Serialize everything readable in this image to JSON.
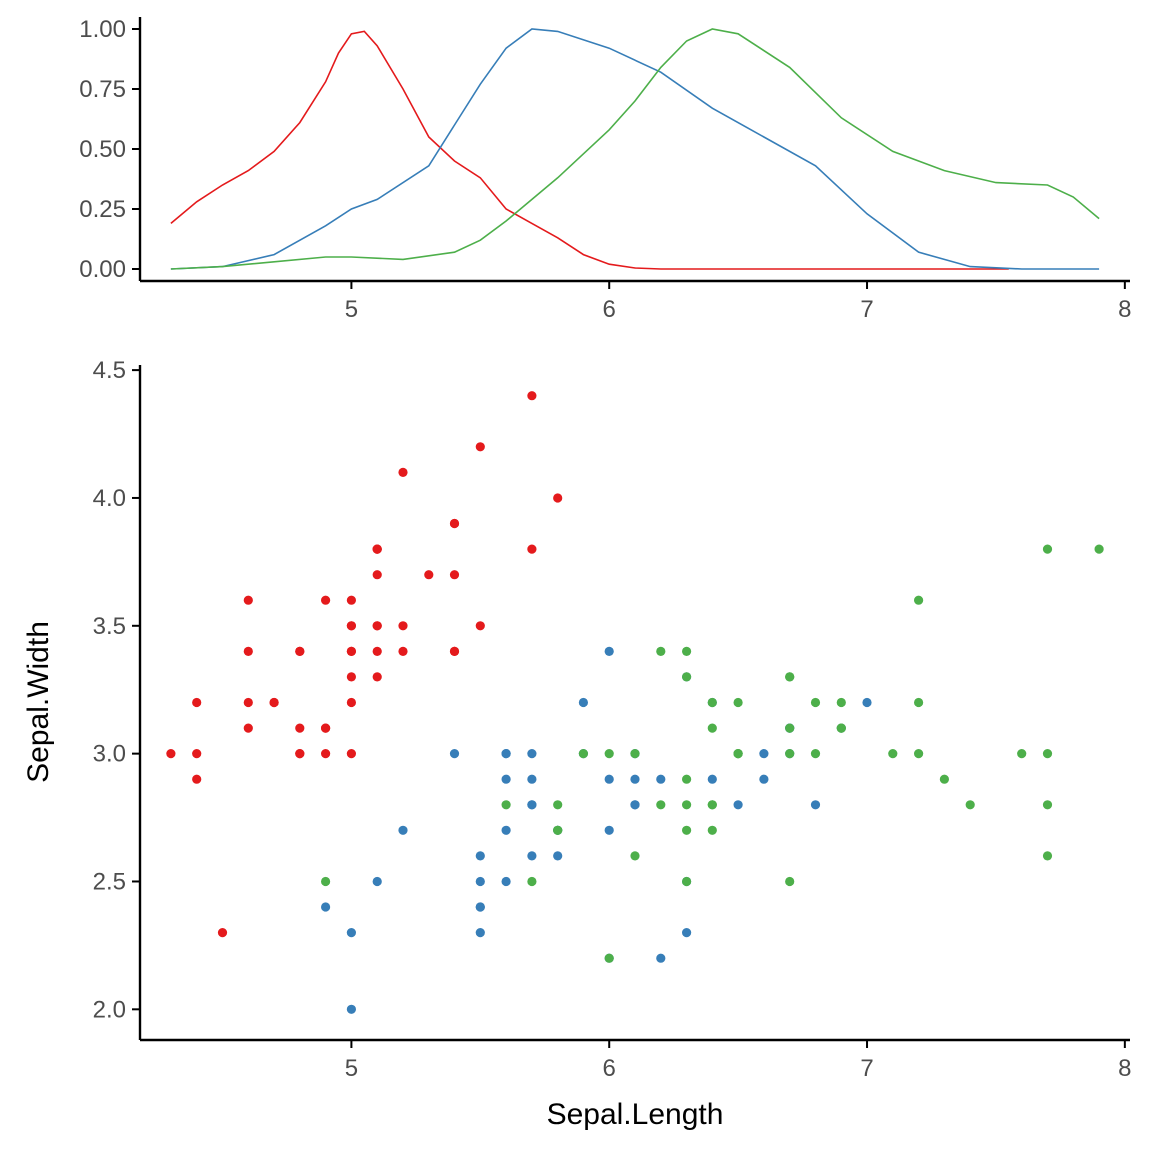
{
  "chart_data": [
    {
      "type": "line",
      "panel": "marginal-density",
      "xlim": [
        4.18,
        8.02
      ],
      "ylim": [
        -0.05,
        1.05
      ],
      "x_ticks": [
        "5",
        "6",
        "7",
        "8"
      ],
      "x_tick_values": [
        5,
        6,
        7,
        8
      ],
      "y_ticks": [
        "0.00",
        "0.25",
        "0.50",
        "0.75",
        "1.00"
      ],
      "y_tick_values": [
        0,
        0.25,
        0.5,
        0.75,
        1.0
      ],
      "grid": false,
      "legend": "none",
      "series": [
        {
          "color": "#e41a1c",
          "points": [
            [
              4.3,
              0.19
            ],
            [
              4.4,
              0.28
            ],
            [
              4.5,
              0.35
            ],
            [
              4.6,
              0.41
            ],
            [
              4.7,
              0.49
            ],
            [
              4.8,
              0.61
            ],
            [
              4.9,
              0.78
            ],
            [
              4.95,
              0.9
            ],
            [
              5.0,
              0.98
            ],
            [
              5.05,
              0.99
            ],
            [
              5.1,
              0.93
            ],
            [
              5.2,
              0.75
            ],
            [
              5.3,
              0.55
            ],
            [
              5.4,
              0.45
            ],
            [
              5.5,
              0.38
            ],
            [
              5.6,
              0.25
            ],
            [
              5.7,
              0.19
            ],
            [
              5.8,
              0.13
            ],
            [
              5.9,
              0.06
            ],
            [
              6.0,
              0.02
            ],
            [
              6.1,
              0.004
            ],
            [
              6.2,
              0.0
            ],
            [
              7.0,
              0.0
            ],
            [
              7.55,
              0.0
            ]
          ]
        },
        {
          "color": "#377eb8",
          "points": [
            [
              4.3,
              0.0
            ],
            [
              4.5,
              0.01
            ],
            [
              4.7,
              0.06
            ],
            [
              4.9,
              0.18
            ],
            [
              5.0,
              0.25
            ],
            [
              5.1,
              0.29
            ],
            [
              5.3,
              0.43
            ],
            [
              5.4,
              0.6
            ],
            [
              5.5,
              0.77
            ],
            [
              5.6,
              0.92
            ],
            [
              5.7,
              1.0
            ],
            [
              5.8,
              0.99
            ],
            [
              6.0,
              0.92
            ],
            [
              6.2,
              0.82
            ],
            [
              6.4,
              0.67
            ],
            [
              6.6,
              0.55
            ],
            [
              6.8,
              0.43
            ],
            [
              7.0,
              0.23
            ],
            [
              7.2,
              0.07
            ],
            [
              7.4,
              0.01
            ],
            [
              7.6,
              0.0
            ],
            [
              7.9,
              0.0
            ]
          ]
        },
        {
          "color": "#4daf4a",
          "points": [
            [
              4.3,
              0.0
            ],
            [
              4.5,
              0.01
            ],
            [
              4.7,
              0.03
            ],
            [
              4.9,
              0.05
            ],
            [
              5.0,
              0.05
            ],
            [
              5.2,
              0.04
            ],
            [
              5.4,
              0.07
            ],
            [
              5.5,
              0.12
            ],
            [
              5.6,
              0.2
            ],
            [
              5.8,
              0.38
            ],
            [
              6.0,
              0.58
            ],
            [
              6.1,
              0.7
            ],
            [
              6.2,
              0.84
            ],
            [
              6.3,
              0.95
            ],
            [
              6.4,
              1.0
            ],
            [
              6.5,
              0.98
            ],
            [
              6.7,
              0.84
            ],
            [
              6.9,
              0.63
            ],
            [
              7.1,
              0.49
            ],
            [
              7.3,
              0.41
            ],
            [
              7.5,
              0.36
            ],
            [
              7.7,
              0.35
            ],
            [
              7.8,
              0.3
            ],
            [
              7.9,
              0.21
            ]
          ]
        }
      ]
    },
    {
      "type": "scatter",
      "panel": "main",
      "xlabel": "Sepal.Length",
      "ylabel": "Sepal.Width",
      "xlim": [
        4.18,
        8.02
      ],
      "ylim": [
        1.88,
        4.52
      ],
      "x_ticks": [
        "5",
        "6",
        "7",
        "8"
      ],
      "x_tick_values": [
        5,
        6,
        7,
        8
      ],
      "y_ticks": [
        "2.0",
        "2.5",
        "3.0",
        "3.5",
        "4.0",
        "4.5"
      ],
      "y_tick_values": [
        2.0,
        2.5,
        3.0,
        3.5,
        4.0,
        4.5
      ],
      "grid": false,
      "legend": "none",
      "series": [
        {
          "color": "#e41a1c",
          "points": [
            [
              5.1,
              3.5
            ],
            [
              4.9,
              3.0
            ],
            [
              4.7,
              3.2
            ],
            [
              4.6,
              3.1
            ],
            [
              5.0,
              3.6
            ],
            [
              5.4,
              3.9
            ],
            [
              4.6,
              3.4
            ],
            [
              5.0,
              3.4
            ],
            [
              4.4,
              2.9
            ],
            [
              4.9,
              3.1
            ],
            [
              5.4,
              3.7
            ],
            [
              4.8,
              3.4
            ],
            [
              4.8,
              3.0
            ],
            [
              4.3,
              3.0
            ],
            [
              5.8,
              4.0
            ],
            [
              5.7,
              4.4
            ],
            [
              5.4,
              3.9
            ],
            [
              5.1,
              3.5
            ],
            [
              5.7,
              3.8
            ],
            [
              5.1,
              3.8
            ],
            [
              5.4,
              3.4
            ],
            [
              5.1,
              3.7
            ],
            [
              4.6,
              3.6
            ],
            [
              5.1,
              3.3
            ],
            [
              4.8,
              3.4
            ],
            [
              5.0,
              3.0
            ],
            [
              5.0,
              3.4
            ],
            [
              5.2,
              3.5
            ],
            [
              5.2,
              3.4
            ],
            [
              4.7,
              3.2
            ],
            [
              4.8,
              3.1
            ],
            [
              5.4,
              3.4
            ],
            [
              5.2,
              4.1
            ],
            [
              5.5,
              4.2
            ],
            [
              4.9,
              3.1
            ],
            [
              5.0,
              3.2
            ],
            [
              5.5,
              3.5
            ],
            [
              4.9,
              3.6
            ],
            [
              4.4,
              3.0
            ],
            [
              5.1,
              3.4
            ],
            [
              5.0,
              3.5
            ],
            [
              4.5,
              2.3
            ],
            [
              4.4,
              3.2
            ],
            [
              5.0,
              3.5
            ],
            [
              5.1,
              3.8
            ],
            [
              4.8,
              3.0
            ],
            [
              5.1,
              3.8
            ],
            [
              4.6,
              3.2
            ],
            [
              5.3,
              3.7
            ],
            [
              5.0,
              3.3
            ]
          ]
        },
        {
          "color": "#377eb8",
          "points": [
            [
              7.0,
              3.2
            ],
            [
              6.4,
              3.2
            ],
            [
              6.9,
              3.1
            ],
            [
              5.5,
              2.3
            ],
            [
              6.5,
              2.8
            ],
            [
              5.7,
              2.8
            ],
            [
              6.3,
              3.3
            ],
            [
              4.9,
              2.4
            ],
            [
              6.6,
              2.9
            ],
            [
              5.2,
              2.7
            ],
            [
              5.0,
              2.0
            ],
            [
              5.9,
              3.0
            ],
            [
              6.0,
              2.2
            ],
            [
              6.1,
              2.9
            ],
            [
              5.6,
              2.9
            ],
            [
              6.7,
              3.1
            ],
            [
              5.6,
              3.0
            ],
            [
              5.8,
              2.7
            ],
            [
              6.2,
              2.2
            ],
            [
              5.6,
              2.5
            ],
            [
              5.9,
              3.2
            ],
            [
              6.1,
              2.8
            ],
            [
              6.3,
              2.5
            ],
            [
              6.1,
              2.8
            ],
            [
              6.4,
              2.9
            ],
            [
              6.6,
              3.0
            ],
            [
              6.8,
              2.8
            ],
            [
              6.7,
              3.0
            ],
            [
              6.0,
              2.9
            ],
            [
              5.7,
              2.6
            ],
            [
              5.5,
              2.4
            ],
            [
              5.5,
              2.4
            ],
            [
              5.8,
              2.7
            ],
            [
              6.0,
              2.7
            ],
            [
              5.4,
              3.0
            ],
            [
              6.0,
              3.4
            ],
            [
              6.7,
              3.1
            ],
            [
              6.3,
              2.3
            ],
            [
              5.6,
              3.0
            ],
            [
              5.5,
              2.5
            ],
            [
              5.5,
              2.6
            ],
            [
              6.1,
              3.0
            ],
            [
              5.8,
              2.6
            ],
            [
              5.0,
              2.3
            ],
            [
              5.6,
              2.7
            ],
            [
              5.7,
              3.0
            ],
            [
              5.7,
              2.9
            ],
            [
              6.2,
              2.9
            ],
            [
              5.1,
              2.5
            ],
            [
              5.7,
              2.8
            ]
          ]
        },
        {
          "color": "#4daf4a",
          "points": [
            [
              6.3,
              3.3
            ],
            [
              5.8,
              2.7
            ],
            [
              7.1,
              3.0
            ],
            [
              6.3,
              2.9
            ],
            [
              6.5,
              3.0
            ],
            [
              7.6,
              3.0
            ],
            [
              4.9,
              2.5
            ],
            [
              7.3,
              2.9
            ],
            [
              6.7,
              2.5
            ],
            [
              7.2,
              3.6
            ],
            [
              6.5,
              3.2
            ],
            [
              6.4,
              2.7
            ],
            [
              6.8,
              3.0
            ],
            [
              5.7,
              2.5
            ],
            [
              5.8,
              2.8
            ],
            [
              6.4,
              3.2
            ],
            [
              6.5,
              3.0
            ],
            [
              7.7,
              3.8
            ],
            [
              7.7,
              2.6
            ],
            [
              6.0,
              2.2
            ],
            [
              6.9,
              3.2
            ],
            [
              5.6,
              2.8
            ],
            [
              7.7,
              2.8
            ],
            [
              6.3,
              2.7
            ],
            [
              6.7,
              3.3
            ],
            [
              7.2,
              3.2
            ],
            [
              6.2,
              2.8
            ],
            [
              6.1,
              3.0
            ],
            [
              6.4,
              2.8
            ],
            [
              7.2,
              3.0
            ],
            [
              7.4,
              2.8
            ],
            [
              7.9,
              3.8
            ],
            [
              6.4,
              2.8
            ],
            [
              6.3,
              2.8
            ],
            [
              6.1,
              2.6
            ],
            [
              7.7,
              3.0
            ],
            [
              6.3,
              3.4
            ],
            [
              6.4,
              3.1
            ],
            [
              6.0,
              3.0
            ],
            [
              6.9,
              3.1
            ],
            [
              6.7,
              3.1
            ],
            [
              6.9,
              3.1
            ],
            [
              5.8,
              2.7
            ],
            [
              6.8,
              3.2
            ],
            [
              6.7,
              3.3
            ],
            [
              6.7,
              3.0
            ],
            [
              6.3,
              2.5
            ],
            [
              6.5,
              3.0
            ],
            [
              6.2,
              3.4
            ],
            [
              5.9,
              3.0
            ]
          ]
        }
      ]
    }
  ]
}
